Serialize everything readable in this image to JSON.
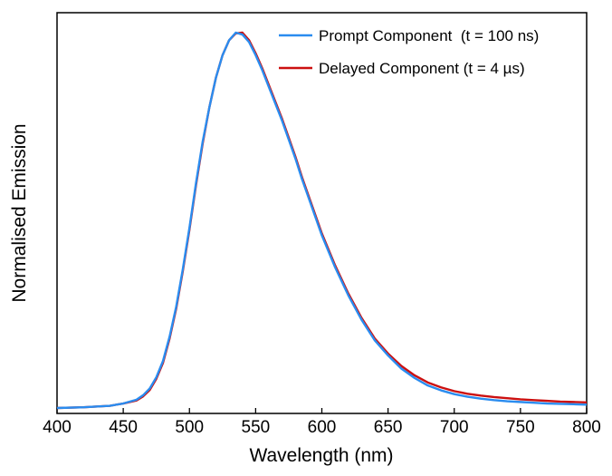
{
  "chart_data": {
    "type": "line",
    "title": "",
    "xlabel": "Wavelength (nm)",
    "ylabel": "Normalised Emission",
    "xlim": [
      400,
      800
    ],
    "ylim": [
      0,
      1.04
    ],
    "x_ticks": [
      "400",
      "450",
      "500",
      "550",
      "600",
      "650",
      "700",
      "750",
      "800"
    ],
    "y_ticks_shown": false,
    "grid": false,
    "legend_position": "top-right",
    "series": [
      {
        "name": "Prompt Component  (t = 100 ns)",
        "color": "#2a8cef",
        "x": [
          400,
          420,
          440,
          450,
          460,
          465,
          470,
          475,
          480,
          485,
          490,
          495,
          500,
          505,
          510,
          515,
          520,
          525,
          530,
          535,
          540,
          545,
          550,
          555,
          560,
          565,
          570,
          575,
          580,
          585,
          590,
          595,
          600,
          610,
          620,
          630,
          640,
          650,
          660,
          670,
          680,
          690,
          700,
          710,
          720,
          730,
          740,
          750,
          760,
          770,
          780,
          790,
          800
        ],
        "y": [
          0.0,
          0.002,
          0.006,
          0.012,
          0.022,
          0.034,
          0.052,
          0.082,
          0.125,
          0.19,
          0.27,
          0.37,
          0.48,
          0.6,
          0.71,
          0.8,
          0.88,
          0.94,
          0.98,
          1.0,
          0.995,
          0.975,
          0.94,
          0.9,
          0.855,
          0.81,
          0.765,
          0.715,
          0.665,
          0.61,
          0.56,
          0.51,
          0.46,
          0.375,
          0.3,
          0.235,
          0.18,
          0.14,
          0.105,
          0.08,
          0.06,
          0.047,
          0.037,
          0.03,
          0.025,
          0.021,
          0.018,
          0.016,
          0.014,
          0.012,
          0.011,
          0.01,
          0.009
        ]
      },
      {
        "name": "Delayed Component (t = 4 µs)",
        "color": "#cc1010",
        "x": [
          400,
          420,
          440,
          450,
          460,
          465,
          470,
          475,
          480,
          485,
          490,
          495,
          500,
          505,
          510,
          515,
          520,
          525,
          530,
          535,
          540,
          545,
          550,
          555,
          560,
          565,
          570,
          575,
          580,
          585,
          590,
          595,
          600,
          610,
          620,
          630,
          640,
          650,
          660,
          670,
          680,
          690,
          700,
          710,
          720,
          730,
          740,
          750,
          760,
          770,
          780,
          790,
          800
        ],
        "y": [
          0.0,
          0.002,
          0.006,
          0.012,
          0.02,
          0.031,
          0.048,
          0.078,
          0.12,
          0.185,
          0.265,
          0.365,
          0.475,
          0.595,
          0.705,
          0.8,
          0.88,
          0.94,
          0.98,
          0.998,
          1.0,
          0.98,
          0.945,
          0.905,
          0.86,
          0.815,
          0.77,
          0.72,
          0.67,
          0.615,
          0.565,
          0.515,
          0.465,
          0.38,
          0.305,
          0.24,
          0.185,
          0.145,
          0.112,
          0.087,
          0.068,
          0.055,
          0.045,
          0.038,
          0.033,
          0.029,
          0.026,
          0.023,
          0.021,
          0.019,
          0.017,
          0.016,
          0.015
        ]
      }
    ]
  }
}
